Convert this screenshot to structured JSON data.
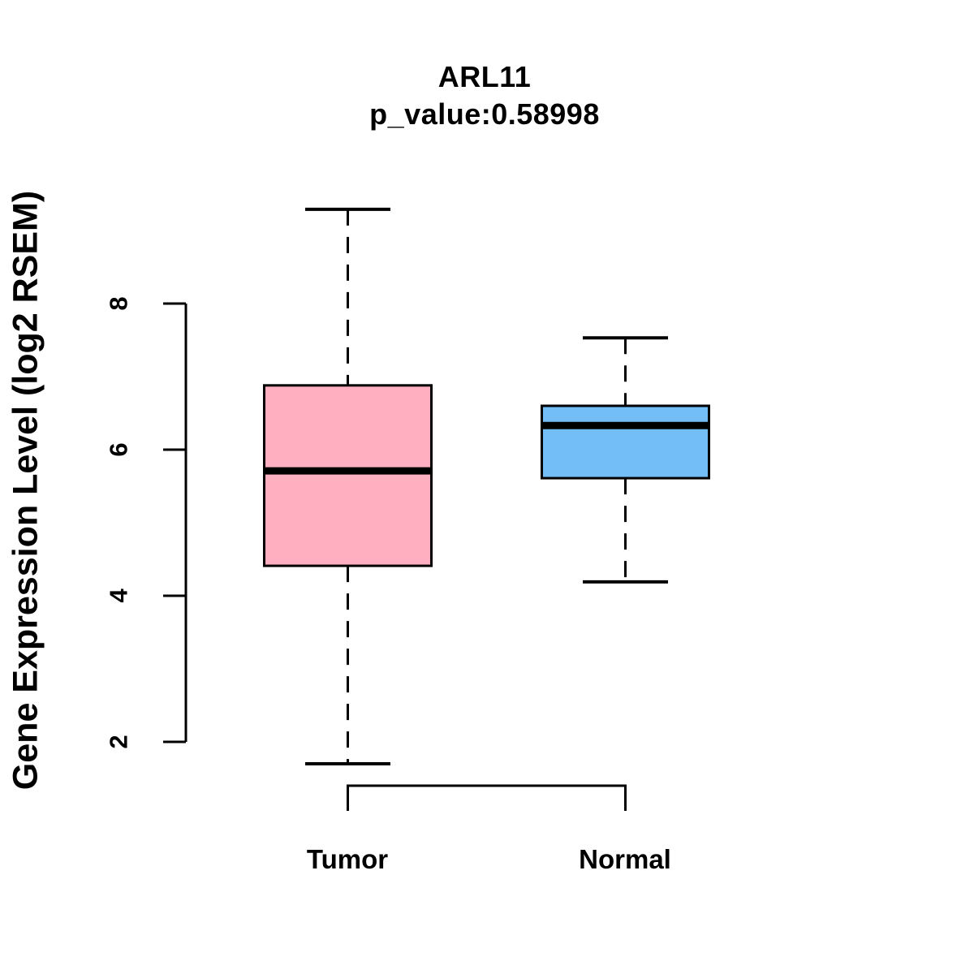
{
  "title": "ARL11",
  "subtitle": "p_value:0.58998",
  "y_axis": {
    "label": "Gene Expression Level (log2 RSEM)"
  },
  "chart_data": {
    "type": "boxplot",
    "title": "ARL11",
    "subtitle": "p_value:0.58998",
    "ylabel": "Gene Expression Level (log2 RSEM)",
    "xlabel": "",
    "categories": [
      "Tumor",
      "Normal"
    ],
    "yticks": [
      2,
      4,
      6,
      8
    ],
    "ylim": [
      1.2,
      9.6
    ],
    "grid": false,
    "legend": "none",
    "stroke_color": "#000000",
    "background_color": "#ffffff",
    "series": [
      {
        "name": "Tumor",
        "min": 1.7,
        "q1": 4.41,
        "median": 5.71,
        "q3": 6.88,
        "max": 9.29,
        "fill": "#FFAFC0"
      },
      {
        "name": "Normal",
        "min": 4.19,
        "q1": 5.61,
        "median": 6.33,
        "q3": 6.6,
        "max": 7.53,
        "fill": "#74BEF8"
      }
    ]
  }
}
